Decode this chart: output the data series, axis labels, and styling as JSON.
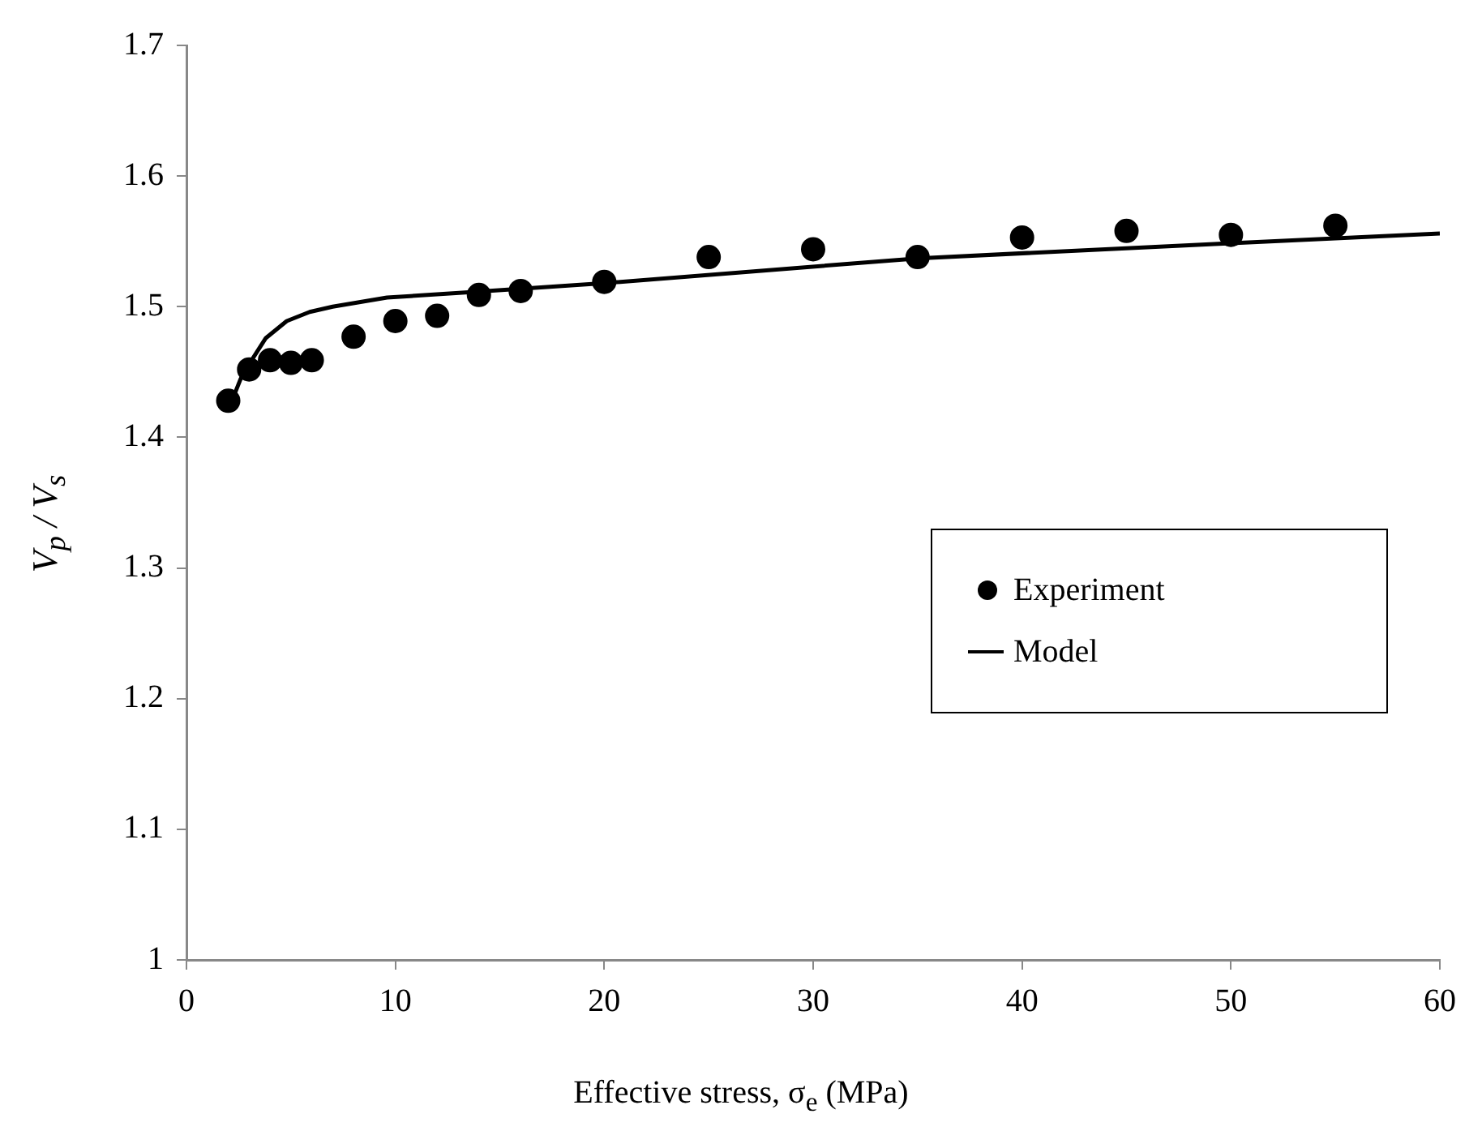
{
  "chart_data": {
    "type": "scatter",
    "xlabel": "Effective stress, σ$_{e}$ (MPa)",
    "ylabel": "V$_{p}$ / V$_{s}$",
    "xlim": [
      0,
      60
    ],
    "xticks": [
      0,
      10,
      20,
      30,
      40,
      50,
      60
    ],
    "ylim": [
      1,
      1.7
    ],
    "yticks": [
      1,
      1.1,
      1.2,
      1.3,
      1.4,
      1.5,
      1.6,
      1.7
    ],
    "grid": false,
    "legend": "right",
    "series": [
      {
        "name": "Experiment",
        "type": "scatter",
        "color": "#000000",
        "marker": "circle",
        "x": [
          2,
          3,
          4,
          5,
          6,
          8,
          10,
          12,
          14,
          16,
          20,
          25,
          30,
          35,
          40,
          45,
          50,
          55
        ],
        "values": [
          1.428,
          1.452,
          1.459,
          1.457,
          1.459,
          1.477,
          1.489,
          1.493,
          1.509,
          1.512,
          1.519,
          1.538,
          1.544,
          1.538,
          1.553,
          1.558,
          1.555,
          1.562
        ]
      },
      {
        "name": "Model",
        "type": "line",
        "color": "#000000",
        "marker": "none",
        "line_style": "solid",
        "x": [
          2,
          2.6,
          3,
          3.8,
          4.8,
          5.9,
          7,
          9.6,
          13.5,
          20,
          35,
          49.2,
          60
        ],
        "values": [
          1.421,
          1.445,
          1.456,
          1.476,
          1.489,
          1.496,
          1.5,
          1.507,
          1.511,
          1.518,
          1.537,
          1.548,
          1.556
        ]
      }
    ]
  }
}
